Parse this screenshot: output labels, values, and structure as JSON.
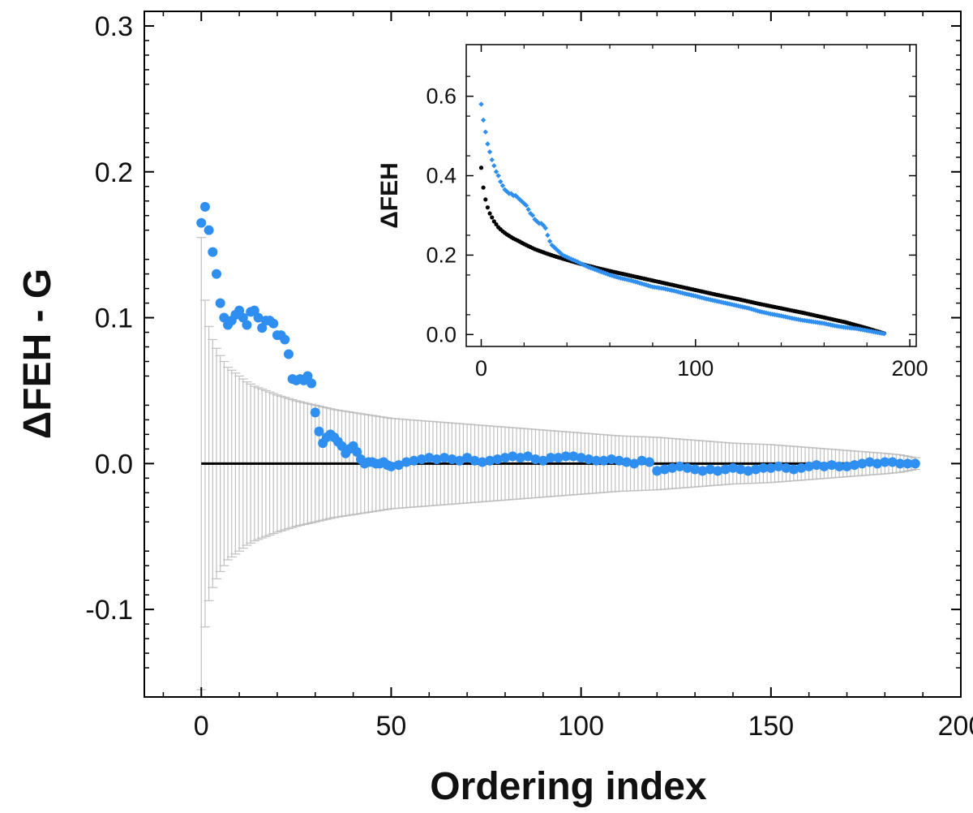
{
  "chart_data": [
    {
      "type": "scatter",
      "title": "",
      "xlabel": "Ordering index",
      "ylabel": "ΔFEH - G",
      "xlim": [
        -15,
        200
      ],
      "ylim": [
        -0.16,
        0.31
      ],
      "xticks": [
        0,
        50,
        100,
        150,
        200
      ],
      "xtick_labels": [
        "0",
        "50",
        "100",
        "150",
        "200"
      ],
      "yticks": [
        -0.1,
        0.0,
        0.1,
        0.2,
        0.3
      ],
      "ytick_labels": [
        "-0.1",
        "0.0",
        "0.1",
        "0.2",
        "0.3"
      ],
      "grid": false,
      "reference_line": {
        "y": 0.0,
        "x": [
          0,
          188
        ],
        "color": "#000000"
      },
      "series": [
        {
          "marker": "filled-circle",
          "color": "#2e8ff0",
          "x": [
            0,
            1,
            2,
            3,
            4,
            5,
            6,
            7,
            8,
            9,
            10,
            11,
            12,
            13,
            14,
            15,
            16,
            17,
            18,
            19,
            20,
            21,
            22,
            23,
            24,
            25,
            26,
            27,
            28,
            29,
            30,
            31,
            32,
            33,
            34,
            35,
            36,
            37,
            38,
            39,
            40,
            41,
            42,
            43,
            44,
            45,
            46,
            47,
            48,
            49,
            50,
            52,
            54,
            56,
            58,
            60,
            62,
            64,
            66,
            68,
            70,
            72,
            74,
            76,
            78,
            80,
            82,
            84,
            86,
            88,
            90,
            92,
            94,
            96,
            98,
            100,
            102,
            104,
            106,
            108,
            110,
            112,
            114,
            116,
            118,
            120,
            122,
            124,
            126,
            128,
            130,
            132,
            134,
            136,
            138,
            140,
            142,
            144,
            146,
            148,
            150,
            152,
            154,
            156,
            158,
            160,
            162,
            164,
            166,
            168,
            170,
            172,
            174,
            176,
            178,
            180,
            182,
            184,
            186,
            188
          ],
          "y": [
            0.165,
            0.176,
            0.16,
            0.145,
            0.13,
            0.11,
            0.1,
            0.095,
            0.098,
            0.102,
            0.105,
            0.1,
            0.095,
            0.104,
            0.105,
            0.1,
            0.093,
            0.098,
            0.098,
            0.096,
            0.088,
            0.088,
            0.085,
            0.075,
            0.058,
            0.057,
            0.058,
            0.057,
            0.06,
            0.055,
            0.035,
            0.022,
            0.014,
            0.018,
            0.02,
            0.018,
            0.015,
            0.012,
            0.007,
            0.01,
            0.012,
            0.008,
            0.003,
            0.0,
            0.001,
            0.001,
            0.0,
            0.0,
            0.001,
            -0.001,
            -0.002,
            -0.001,
            0.001,
            0.002,
            0.003,
            0.004,
            0.003,
            0.004,
            0.003,
            0.002,
            0.004,
            0.002,
            0.001,
            0.002,
            0.003,
            0.004,
            0.005,
            0.004,
            0.005,
            0.003,
            0.002,
            0.004,
            0.004,
            0.005,
            0.005,
            0.004,
            0.003,
            0.002,
            0.002,
            0.003,
            0.002,
            0.001,
            0.0,
            0.002,
            0.001,
            -0.005,
            -0.004,
            -0.003,
            -0.002,
            -0.003,
            -0.004,
            -0.005,
            -0.004,
            -0.005,
            -0.004,
            -0.003,
            -0.004,
            -0.005,
            -0.004,
            -0.003,
            -0.003,
            -0.002,
            -0.003,
            -0.004,
            -0.003,
            -0.002,
            -0.001,
            -0.002,
            -0.001,
            -0.002,
            -0.002,
            -0.001,
            0.0,
            0.001,
            0.0,
            0.001,
            0.001,
            0.0,
            0.0,
            0.0
          ]
        }
      ],
      "error_bars": {
        "color": "#c0c0c0",
        "center": 0.0,
        "x": [
          0,
          1,
          2,
          3,
          4,
          5,
          6,
          7,
          8,
          9,
          10,
          12,
          14,
          16,
          18,
          20,
          25,
          30,
          35,
          40,
          45,
          50,
          60,
          70,
          80,
          90,
          100,
          110,
          120,
          130,
          140,
          150,
          160,
          170,
          175,
          180,
          184,
          186,
          188
        ],
        "half_width": [
          0.155,
          0.112,
          0.094,
          0.085,
          0.079,
          0.074,
          0.07,
          0.066,
          0.064,
          0.062,
          0.06,
          0.056,
          0.053,
          0.051,
          0.049,
          0.047,
          0.043,
          0.04,
          0.037,
          0.035,
          0.033,
          0.031,
          0.029,
          0.027,
          0.025,
          0.023,
          0.021,
          0.019,
          0.018,
          0.016,
          0.014,
          0.013,
          0.011,
          0.009,
          0.008,
          0.007,
          0.006,
          0.005,
          0.004
        ]
      }
    },
    {
      "type": "scatter",
      "title": "",
      "xlabel": "",
      "ylabel": "ΔFEH",
      "xlim": [
        -7,
        203
      ],
      "ylim": [
        -0.03,
        0.73
      ],
      "xticks": [
        0,
        100,
        200
      ],
      "xtick_labels": [
        "0",
        "100",
        "200"
      ],
      "yticks": [
        0.0,
        0.2,
        0.4,
        0.6
      ],
      "ytick_labels": [
        "0.0",
        "0.2",
        "0.4",
        "0.6"
      ],
      "grid": false,
      "series": [
        {
          "marker": "small-circle",
          "color": "#000000",
          "x": [
            0,
            1,
            2,
            3,
            4,
            5,
            6,
            8,
            10,
            12,
            15,
            18,
            20,
            25,
            30,
            35,
            40,
            45,
            50,
            60,
            70,
            80,
            90,
            100,
            110,
            120,
            130,
            140,
            150,
            160,
            170,
            180,
            188
          ],
          "y": [
            0.42,
            0.37,
            0.34,
            0.32,
            0.305,
            0.295,
            0.285,
            0.27,
            0.26,
            0.252,
            0.242,
            0.234,
            0.228,
            0.215,
            0.205,
            0.196,
            0.188,
            0.18,
            0.173,
            0.16,
            0.148,
            0.136,
            0.124,
            0.112,
            0.1,
            0.089,
            0.077,
            0.066,
            0.055,
            0.043,
            0.031,
            0.016,
            0.003
          ]
        },
        {
          "marker": "diamond",
          "color": "#2e8ff0",
          "x": [
            0,
            1,
            2,
            3,
            4,
            5,
            6,
            7,
            8,
            9,
            10,
            11,
            12,
            13,
            14,
            15,
            16,
            17,
            18,
            19,
            20,
            21,
            22,
            23,
            24,
            25,
            26,
            27,
            28,
            29,
            30,
            31,
            32,
            33,
            34,
            35,
            36,
            38,
            40,
            42,
            45,
            48,
            50,
            55,
            60,
            65,
            70,
            75,
            80,
            85,
            90,
            95,
            100,
            105,
            110,
            115,
            120,
            125,
            130,
            135,
            140,
            145,
            150,
            155,
            160,
            165,
            170,
            175,
            180,
            185,
            188
          ],
          "y": [
            0.58,
            0.54,
            0.51,
            0.48,
            0.46,
            0.44,
            0.425,
            0.41,
            0.4,
            0.385,
            0.375,
            0.365,
            0.36,
            0.355,
            0.355,
            0.35,
            0.35,
            0.345,
            0.34,
            0.335,
            0.33,
            0.325,
            0.315,
            0.305,
            0.3,
            0.29,
            0.285,
            0.28,
            0.28,
            0.275,
            0.268,
            0.25,
            0.235,
            0.225,
            0.22,
            0.215,
            0.21,
            0.2,
            0.195,
            0.19,
            0.183,
            0.175,
            0.17,
            0.16,
            0.15,
            0.142,
            0.136,
            0.128,
            0.12,
            0.116,
            0.11,
            0.103,
            0.097,
            0.09,
            0.084,
            0.078,
            0.072,
            0.066,
            0.058,
            0.052,
            0.047,
            0.041,
            0.036,
            0.032,
            0.028,
            0.022,
            0.018,
            0.015,
            0.01,
            0.005,
            0.002
          ]
        }
      ]
    }
  ]
}
